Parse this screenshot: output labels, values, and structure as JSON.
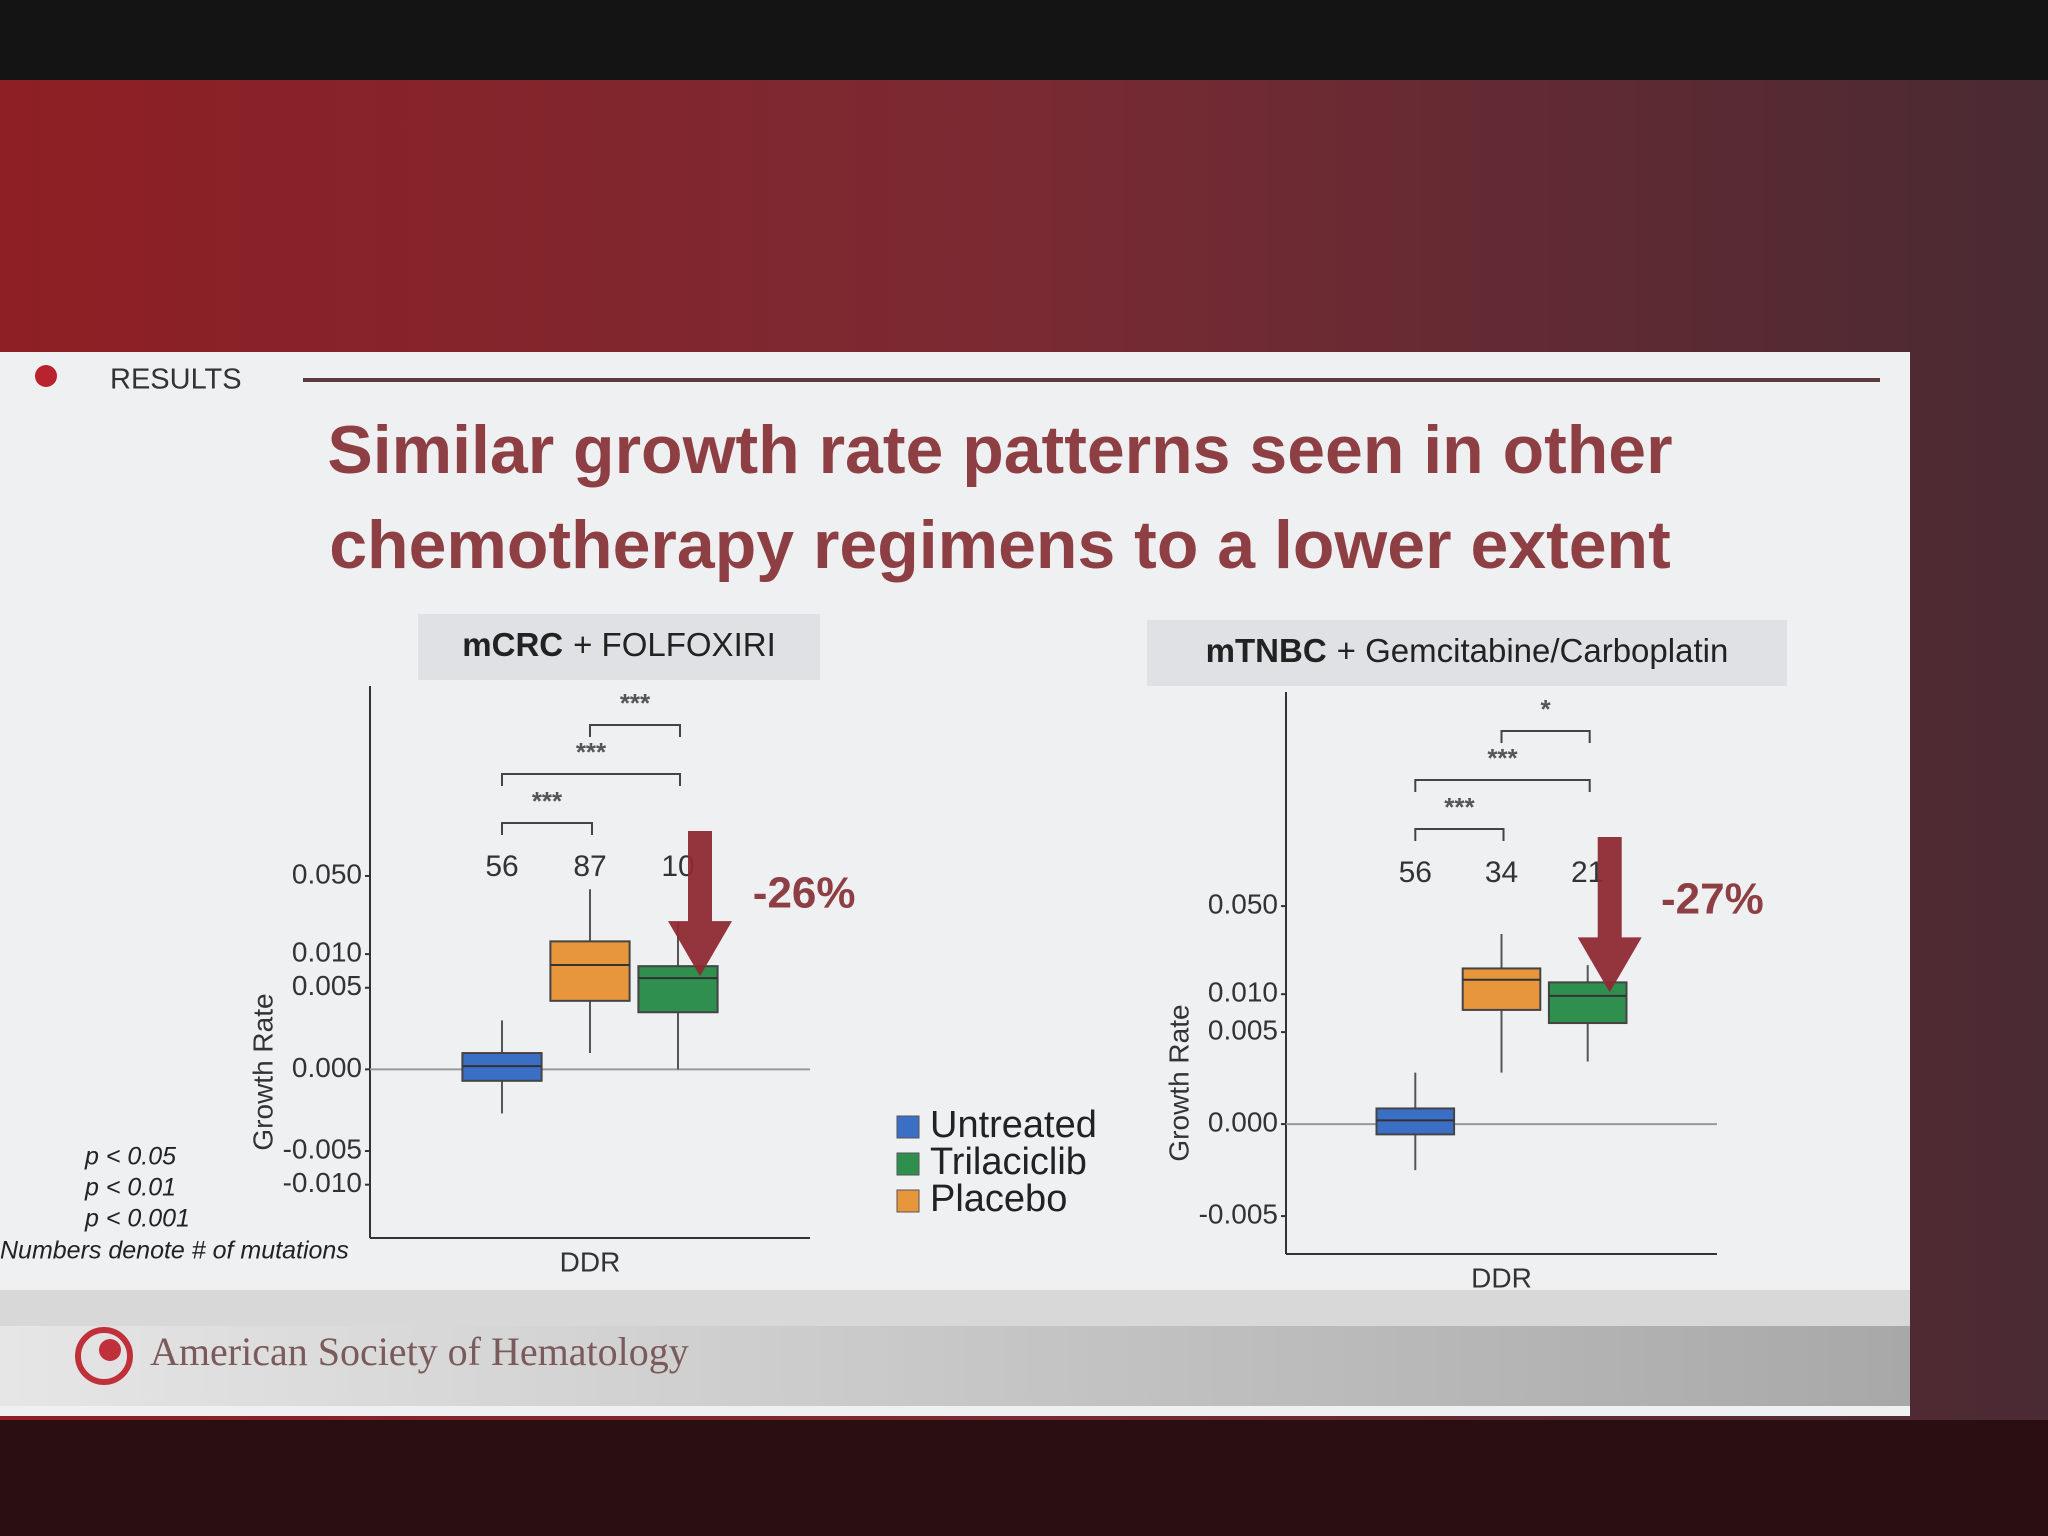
{
  "header": {
    "section": "RESULTS",
    "title": [
      "Similar growth rate patterns seen in other",
      "chemotherapy regimens to a lower extent"
    ]
  },
  "chart_data": [
    {
      "type": "box",
      "title": [
        "mCRC",
        "+ FOLFOXIRI"
      ],
      "ylabel": "Growth Rate",
      "categories": [
        "DDR"
      ],
      "yscale": "symlog",
      "linthresh": 0.005,
      "ylim": [
        -0.03,
        2.5
      ],
      "yticks": [
        {
          "value": 0.05,
          "label": "0.050"
        },
        {
          "value": 0.01,
          "label": "0.010"
        },
        {
          "value": 0.005,
          "label": "0.005"
        },
        {
          "value": 0,
          "label": "0.000"
        },
        {
          "value": -0.005,
          "label": "-0.005"
        },
        {
          "value": -0.01,
          "label": "-0.010"
        }
      ],
      "series": [
        {
          "name": "Untreated",
          "color": "#3b6fc6",
          "box": {
            "whislo": -0.0027,
            "q1": -0.0007,
            "med": 0.0002,
            "q3": 0.001,
            "whishi": 0.003
          }
        },
        {
          "name": "Placebo",
          "color": "#e8963c",
          "box": {
            "whislo": 0.001,
            "q1": 0.0042,
            "med": 0.008,
            "q3": 0.013,
            "whishi": 0.038
          }
        },
        {
          "name": "Trilaciclib",
          "color": "#2f8f4e",
          "box": {
            "whislo": 0,
            "q1": 0.0035,
            "med": 0.0061,
            "q3": 0.0078,
            "whishi": 0.0195
          }
        }
      ],
      "counts": [
        56,
        87,
        10
      ],
      "brackets": [
        {
          "from": 0,
          "to": 1,
          "label": "***"
        },
        {
          "from": 0,
          "to": 2,
          "label": "***"
        },
        {
          "from": 1,
          "to": 2,
          "label": "***"
        }
      ],
      "annotation": "-26%"
    },
    {
      "type": "box",
      "title": [
        "mTNBC",
        "+ Gemcitabine/Carboplatin"
      ],
      "ylabel": "Growth Rate",
      "categories": [
        "DDR"
      ],
      "yscale": "symlog",
      "linthresh": 0.005,
      "ylim": [
        -0.01,
        2.5
      ],
      "yticks": [
        {
          "value": 0.05,
          "label": "0.050"
        },
        {
          "value": 0.01,
          "label": "0.010"
        },
        {
          "value": 0.005,
          "label": "0.005"
        },
        {
          "value": 0,
          "label": "0.000"
        },
        {
          "value": -0.005,
          "label": "-0.005"
        }
      ],
      "series": [
        {
          "color": "#3b6fc6",
          "box": {
            "whislo": -0.0025,
            "q1": -0.00056,
            "med": 0.0002,
            "q3": 0.00085,
            "whishi": 0.0028
          }
        },
        {
          "color": "#e8963c",
          "box": {
            "whislo": 0.0028,
            "q1": 0.0075,
            "med": 0.013,
            "q3": 0.016,
            "whishi": 0.03
          }
        },
        {
          "color": "#2f8f4e",
          "box": {
            "whislo": 0.0034,
            "q1": 0.0059,
            "med": 0.0097,
            "q3": 0.0124,
            "whishi": 0.017
          }
        }
      ],
      "counts": [
        56,
        34,
        21
      ],
      "brackets": [
        {
          "from": 0,
          "to": 1,
          "label": "***"
        },
        {
          "from": 0,
          "to": 2,
          "label": "***"
        },
        {
          "from": 1,
          "to": 2,
          "label": "*"
        }
      ],
      "annotation": "-27%"
    }
  ],
  "legend": {
    "order": [
      "Untreated",
      "Trilaciclib",
      "Placebo"
    ]
  },
  "notes": [
    "p < 0.05",
    "p < 0.01",
    "p < 0.001",
    "Numbers denote # of mutations"
  ],
  "footer": "American Society of Hematology"
}
